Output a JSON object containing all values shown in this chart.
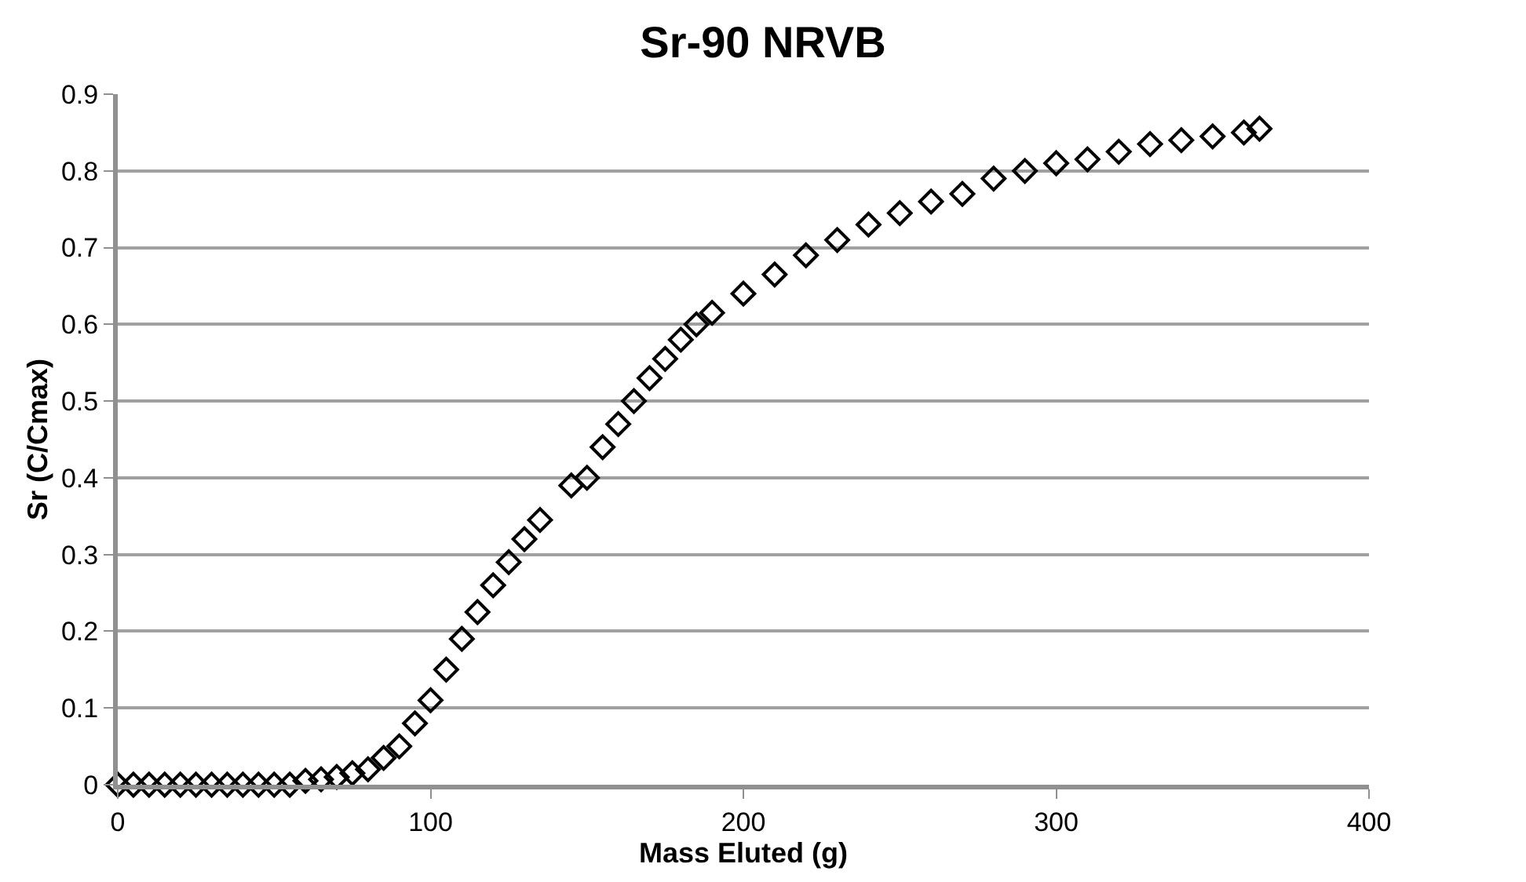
{
  "chart_data": {
    "type": "scatter",
    "title": "Sr-90 NRVB",
    "xlabel": "Mass Eluted (g)",
    "ylabel": "Sr (C/Cmax)",
    "x": [
      0,
      5,
      10,
      15,
      20,
      25,
      30,
      35,
      40,
      45,
      50,
      55,
      60,
      65,
      70,
      75,
      80,
      85,
      90,
      95,
      100,
      105,
      110,
      115,
      120,
      125,
      130,
      135,
      145,
      150,
      155,
      160,
      165,
      170,
      175,
      180,
      185,
      190,
      200,
      210,
      220,
      230,
      240,
      250,
      260,
      270,
      280,
      290,
      300,
      310,
      320,
      330,
      340,
      350,
      360,
      365
    ],
    "series": [
      {
        "color": "#000000",
        "values": [
          0,
          0,
          0,
          0,
          0,
          0,
          0,
          0,
          0,
          0,
          0,
          0,
          0.005,
          0.007,
          0.01,
          0.015,
          0.02,
          0.035,
          0.05,
          0.08,
          0.11,
          0.15,
          0.19,
          0.225,
          0.26,
          0.29,
          0.32,
          0.345,
          0.39,
          0.4,
          0.44,
          0.47,
          0.5,
          0.53,
          0.555,
          0.58,
          0.6,
          0.615,
          0.64,
          0.665,
          0.69,
          0.71,
          0.73,
          0.745,
          0.76,
          0.77,
          0.79,
          0.8,
          0.81,
          0.815,
          0.825,
          0.835,
          0.84,
          0.845,
          0.85,
          0.855
        ]
      }
    ],
    "xlim": [
      0,
      400
    ],
    "xticks": [
      0,
      100,
      200,
      300,
      400
    ],
    "ylim": [
      0,
      0.9
    ],
    "yticks": [
      0,
      0.1,
      0.2,
      0.3,
      0.4,
      0.5,
      0.6,
      0.7,
      0.8,
      0.9
    ],
    "grid": "y",
    "marker": "diamond"
  }
}
